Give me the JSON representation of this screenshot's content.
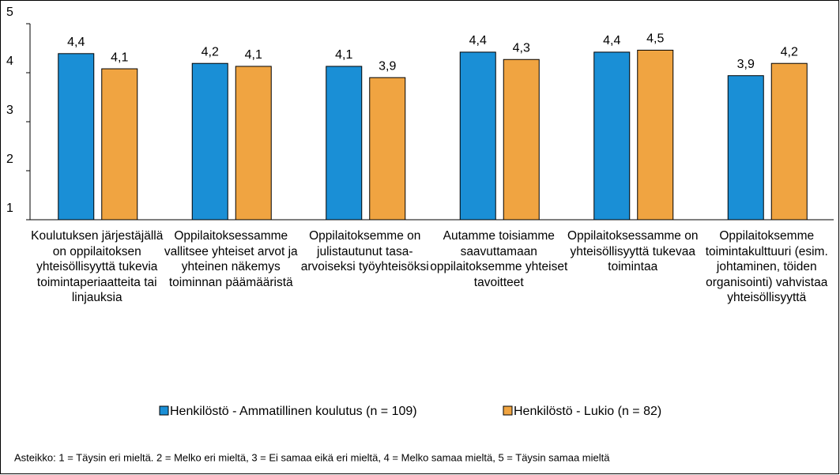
{
  "chart_data": {
    "type": "bar",
    "categories": [
      "Koulutuksen järjestäjällä on oppilaitoksen yhteisöllisyyttä tukevia toimintaperiaatteita tai linjauksia",
      "Oppilaitoksessamme vallitsee yhteiset arvot ja yhteinen näkemys toiminnan päämääristä",
      "Oppilaitoksemme on julistautunut tasa-arvoiseksi työyhteisöksi",
      "Autamme toisiamme saavuttamaan oppilaitoksemme yhteiset tavoitteet",
      "Oppilaitoksessamme on yhteisöllisyyttä tukevaa toimintaa",
      "Oppilaitoksemme toimintakulttuuri (esim. johtaminen, töiden organisointi) vahvistaa yhteisöllisyyttä"
    ],
    "series": [
      {
        "name": "Henkilöstö - Ammatillinen koulutus (n = 109)",
        "color": "#1a8fd6",
        "values": [
          4.39,
          4.19,
          4.13,
          4.42,
          4.42,
          3.94
        ],
        "value_labels": [
          "4,4",
          "4,2",
          "4,1",
          "4,4",
          "4,4",
          "3,9"
        ]
      },
      {
        "name": "Henkilöstö - Lukio (n = 82)",
        "color": "#f0a441",
        "values": [
          4.08,
          4.13,
          3.9,
          4.27,
          4.46,
          4.19
        ],
        "value_labels": [
          "4,1",
          "4,1",
          "3,9",
          "4,3",
          "4,5",
          "4,2"
        ]
      }
    ],
    "ylim": [
      1,
      5
    ],
    "yticks": [
      1,
      2,
      3,
      4,
      5
    ],
    "grid": false,
    "legend": "bottom",
    "note": "Asteikko: 1 = Täysin eri mieltä. 2 = Melko eri mieltä, 3 = Ei samaa eikä eri mieltä, 4 = Melko samaa mieltä, 5 = Täysin samaa mieltä"
  }
}
